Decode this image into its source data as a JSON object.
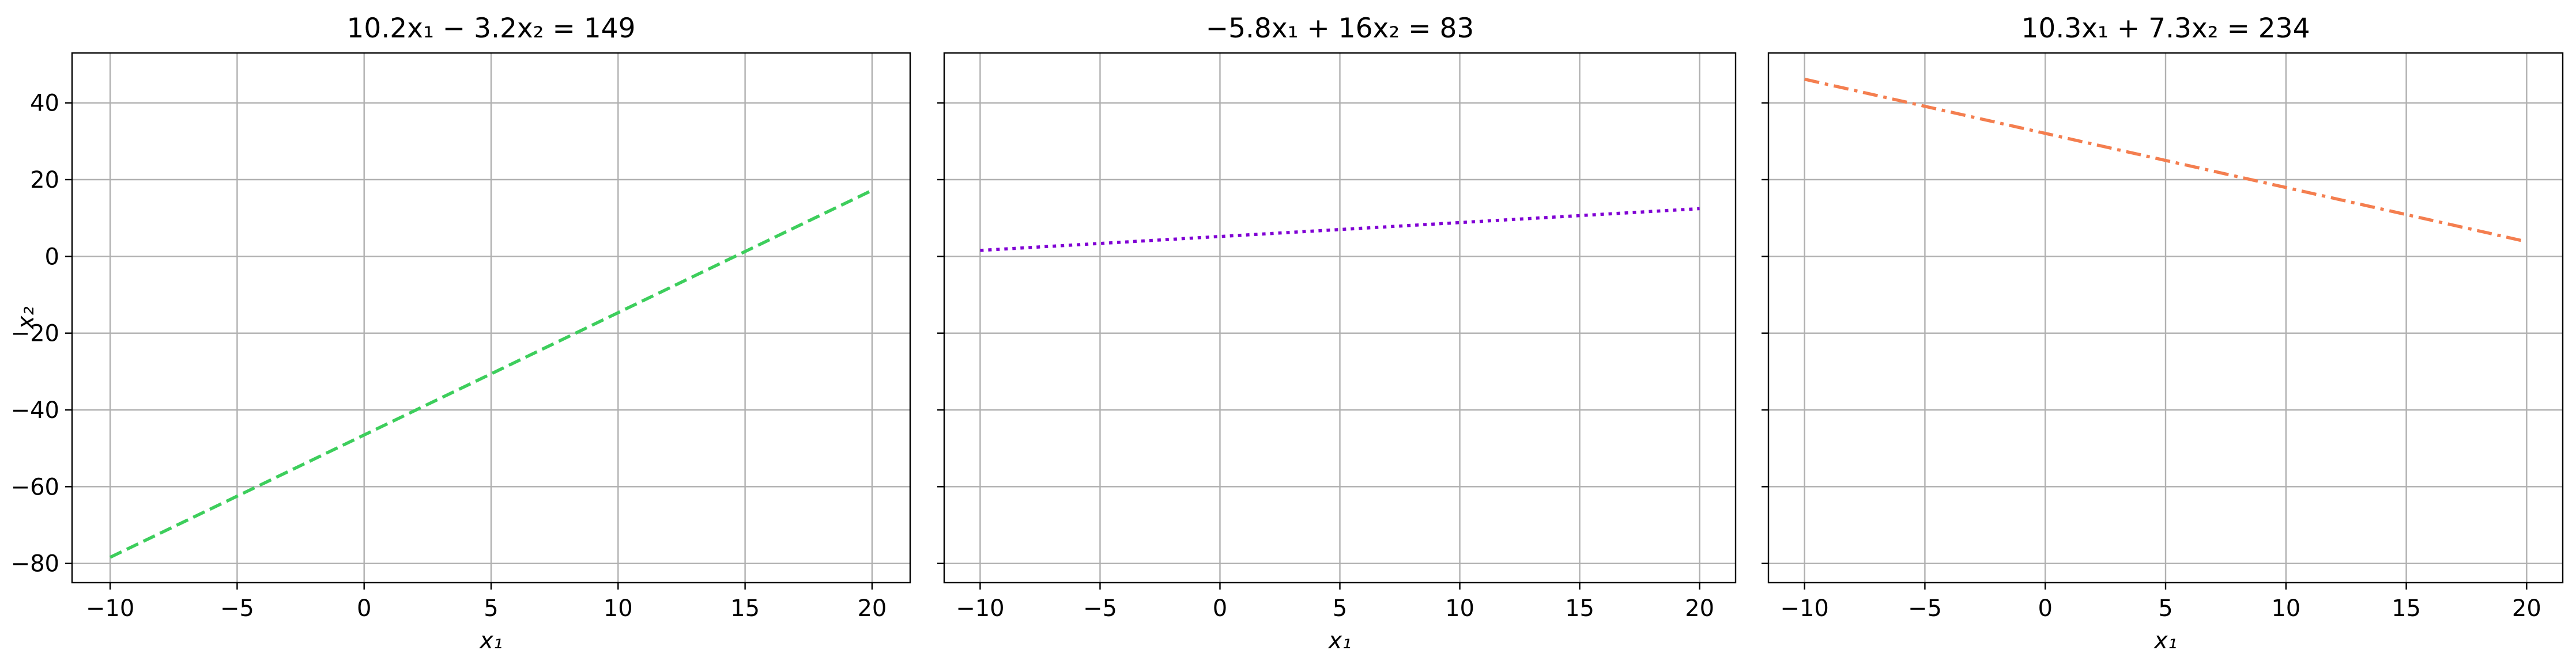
{
  "figure": {
    "shared_y": true,
    "ylabel": "x₂",
    "xlabel": "x₁"
  },
  "chart_data": [
    {
      "type": "line",
      "title": "10.2x₁ − 3.2x₂ = 149",
      "xlabel": "x₁",
      "ylabel": "x₂",
      "xlim": [
        -11.5,
        21.5
      ],
      "ylim": [
        -85,
        53
      ],
      "xticks": [
        -10,
        -5,
        0,
        5,
        10,
        15,
        20
      ],
      "yticks": [
        -80,
        -60,
        -40,
        -20,
        0,
        20,
        40
      ],
      "grid": true,
      "series": [
        {
          "x": [
            -10,
            20
          ],
          "y": [
            -78.4,
            17.2
          ],
          "color": "#3dce5c",
          "dash": "dashed"
        }
      ]
    },
    {
      "type": "line",
      "title": "−5.8x₁ + 16x₂ = 83",
      "xlabel": "x₁",
      "ylabel": "",
      "xlim": [
        -11.5,
        21.5
      ],
      "ylim": [
        -85,
        53
      ],
      "xticks": [
        -10,
        -5,
        0,
        5,
        10,
        15,
        20
      ],
      "yticks": [
        -80,
        -60,
        -40,
        -20,
        0,
        20,
        40
      ],
      "grid": true,
      "series": [
        {
          "x": [
            -10,
            20
          ],
          "y": [
            1.56,
            12.44
          ],
          "color": "#8000d4",
          "dash": "dotted"
        }
      ]
    },
    {
      "type": "line",
      "title": "10.3x₁ + 7.3x₂ = 234",
      "xlabel": "x₁",
      "ylabel": "",
      "xlim": [
        -11.5,
        21.5
      ],
      "ylim": [
        -85,
        53
      ],
      "xticks": [
        -10,
        -5,
        0,
        5,
        10,
        15,
        20
      ],
      "yticks": [
        -80,
        -60,
        -40,
        -20,
        0,
        20,
        40
      ],
      "grid": true,
      "series": [
        {
          "x": [
            -10,
            20
          ],
          "y": [
            46.16,
            3.84
          ],
          "color": "#f47e4f",
          "dash": "dashdot"
        }
      ]
    }
  ]
}
